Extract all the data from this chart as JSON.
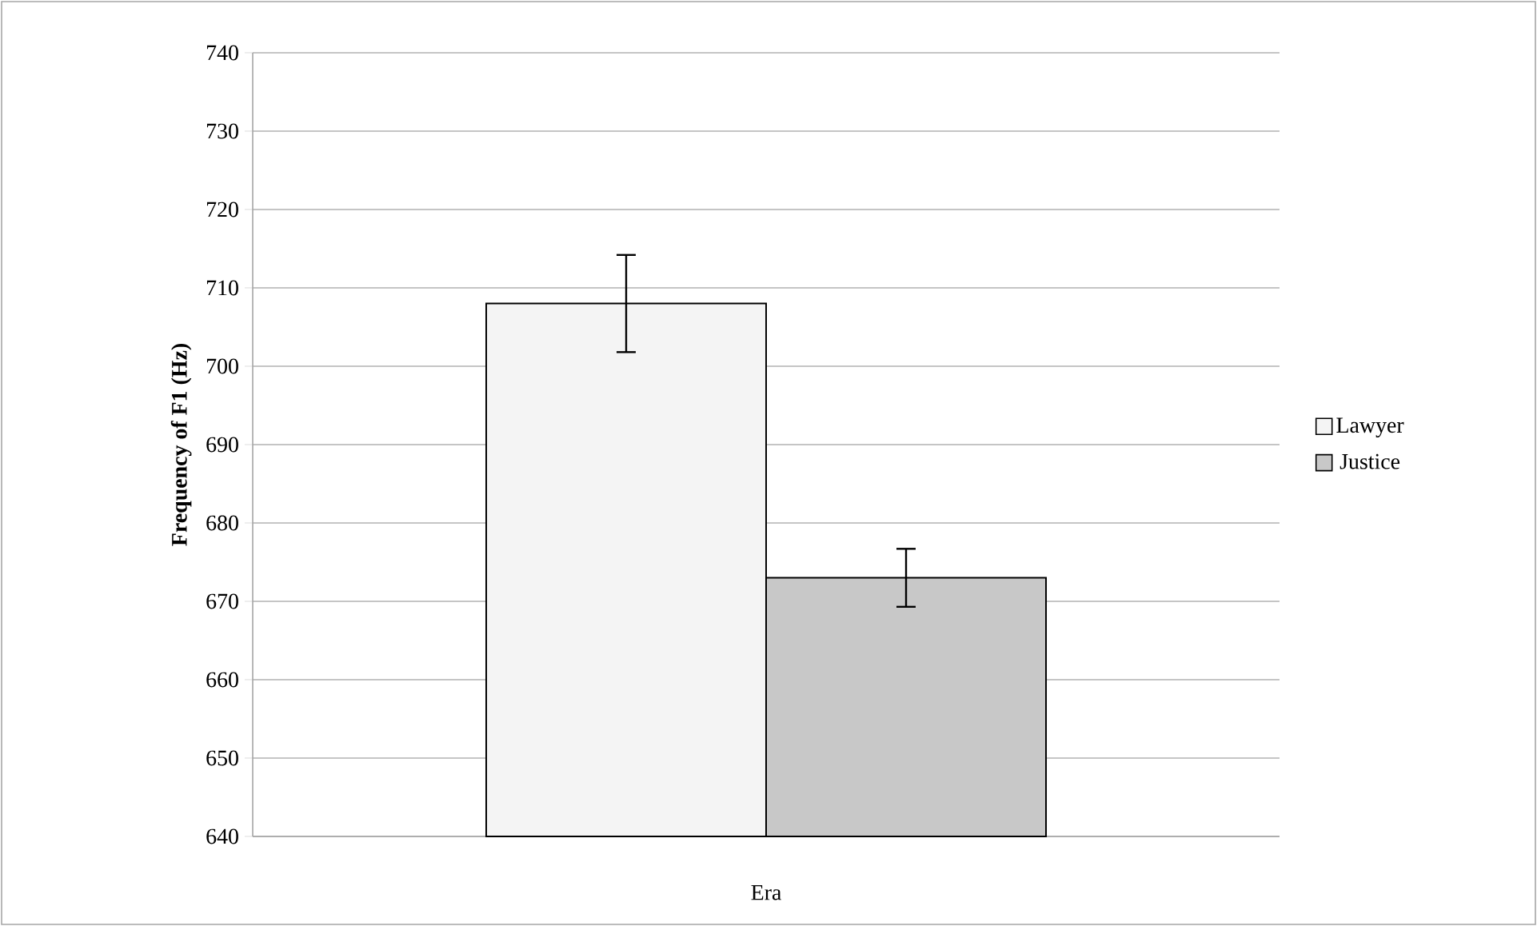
{
  "chart_data": {
    "type": "bar",
    "ylabel": "**Frequency of F1 (Hz)**",
    "categories": [
      "Era"
    ],
    "series": [
      {
        "name": "Lawyer",
        "color": "#f4f4f4",
        "values": [
          708
        ],
        "errors": [
          6.2
        ]
      },
      {
        "name": "Justice",
        "color": "#c8c8c8",
        "values": [
          673
        ],
        "errors": [
          3.7
        ]
      }
    ],
    "ylim": [
      640,
      740
    ],
    "yticks": [
      640,
      650,
      660,
      670,
      680,
      690,
      700,
      710,
      720,
      730,
      740
    ],
    "grid": "y",
    "legend": "right"
  }
}
